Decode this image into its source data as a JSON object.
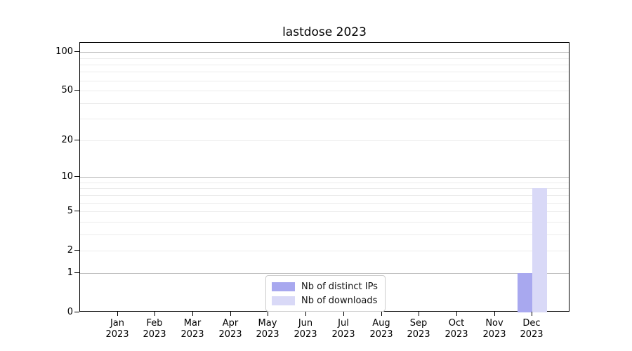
{
  "figure": {
    "background": "#ffffff"
  },
  "chart_data": {
    "type": "bar",
    "title": "lastdose 2023",
    "x_months": [
      "Jan",
      "Feb",
      "Mar",
      "Apr",
      "May",
      "Jun",
      "Jul",
      "Aug",
      "Sep",
      "Oct",
      "Nov",
      "Dec"
    ],
    "x_year": "2023",
    "series": [
      {
        "name": "Nb of distinct IPs",
        "color": "#a8a8ef",
        "values": [
          0,
          0,
          0,
          0,
          0,
          0,
          0,
          0,
          0,
          0,
          0,
          1
        ]
      },
      {
        "name": "Nb of downloads",
        "color": "#d9d9f7",
        "values": [
          0,
          0,
          0,
          0,
          0,
          0,
          0,
          0,
          0,
          0,
          0,
          8
        ]
      }
    ],
    "yscale": "log1p",
    "ylim": [
      0,
      118
    ],
    "y_tick_values": [
      0,
      1,
      2,
      5,
      10,
      20,
      50,
      100
    ],
    "y_major_gridlines": [
      1,
      10,
      100
    ],
    "y_minor_gridlines": [
      2,
      3,
      4,
      5,
      6,
      7,
      8,
      9,
      20,
      30,
      40,
      50,
      60,
      70,
      80,
      90
    ],
    "grid_major_color": "#bcbcbc",
    "grid_minor_color": "#ececec",
    "legend": {
      "position": "lower center",
      "items": [
        "Nb of distinct IPs",
        "Nb of downloads"
      ]
    }
  }
}
